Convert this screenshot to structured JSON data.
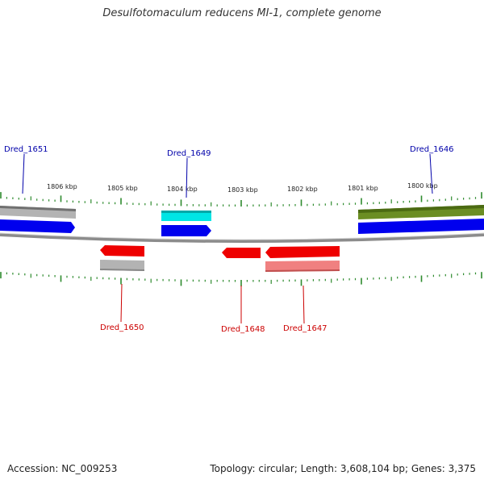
{
  "title": "Desulfotomaculum reducens MI-1, complete genome",
  "footer": {
    "accession": "Accession: NC_009253",
    "summary": "Topology: circular; Length: 3,608,104 bp; Genes: 3,375"
  },
  "colors": {
    "ticks": "#2e8b2e",
    "forward_label": "#0000aa",
    "reverse_label": "#cc0000",
    "backbone": "#808080"
  },
  "ticks": [
    {
      "label": "1806 kbp",
      "kbp": 1806
    },
    {
      "label": "1805 kbp",
      "kbp": 1805
    },
    {
      "label": "1804 kbp",
      "kbp": 1804
    },
    {
      "label": "1803 kbp",
      "kbp": 1803
    },
    {
      "label": "1802 kbp",
      "kbp": 1802
    },
    {
      "label": "1801 kbp",
      "kbp": 1801
    },
    {
      "label": "1800 kbp",
      "kbp": 1800
    }
  ],
  "gene_labels": [
    {
      "name": "Dred_1651",
      "strand": "forward"
    },
    {
      "name": "Dred_1649",
      "strand": "forward"
    },
    {
      "name": "Dred_1646",
      "strand": "forward"
    },
    {
      "name": "Dred_1650",
      "strand": "reverse"
    },
    {
      "name": "Dred_1648",
      "strand": "reverse"
    },
    {
      "name": "Dred_1647",
      "strand": "reverse"
    }
  ],
  "features": [
    {
      "id": "fwd-top-gray",
      "track": "outer",
      "color": "#b0b0b0"
    },
    {
      "id": "fwd-top-cyan",
      "track": "outer",
      "color": "#00e0e0"
    },
    {
      "id": "fwd-top-olive",
      "track": "outer",
      "color": "#6b8e23"
    },
    {
      "id": "fwd-blue-1651",
      "track": "cds",
      "color": "#0000ee"
    },
    {
      "id": "fwd-blue-1649",
      "track": "cds",
      "color": "#0000ee"
    },
    {
      "id": "fwd-blue-1646",
      "track": "cds",
      "color": "#0000ee"
    },
    {
      "id": "rev-red-1650",
      "track": "cds",
      "color": "#ee0000"
    },
    {
      "id": "rev-red-1648",
      "track": "cds",
      "color": "#ee0000"
    },
    {
      "id": "rev-red-1647",
      "track": "cds",
      "color": "#ee0000"
    },
    {
      "id": "rev-gray-1650",
      "track": "inner",
      "color": "#b0b0b0"
    },
    {
      "id": "rev-pink-1647",
      "track": "inner",
      "color": "#f08080"
    }
  ]
}
